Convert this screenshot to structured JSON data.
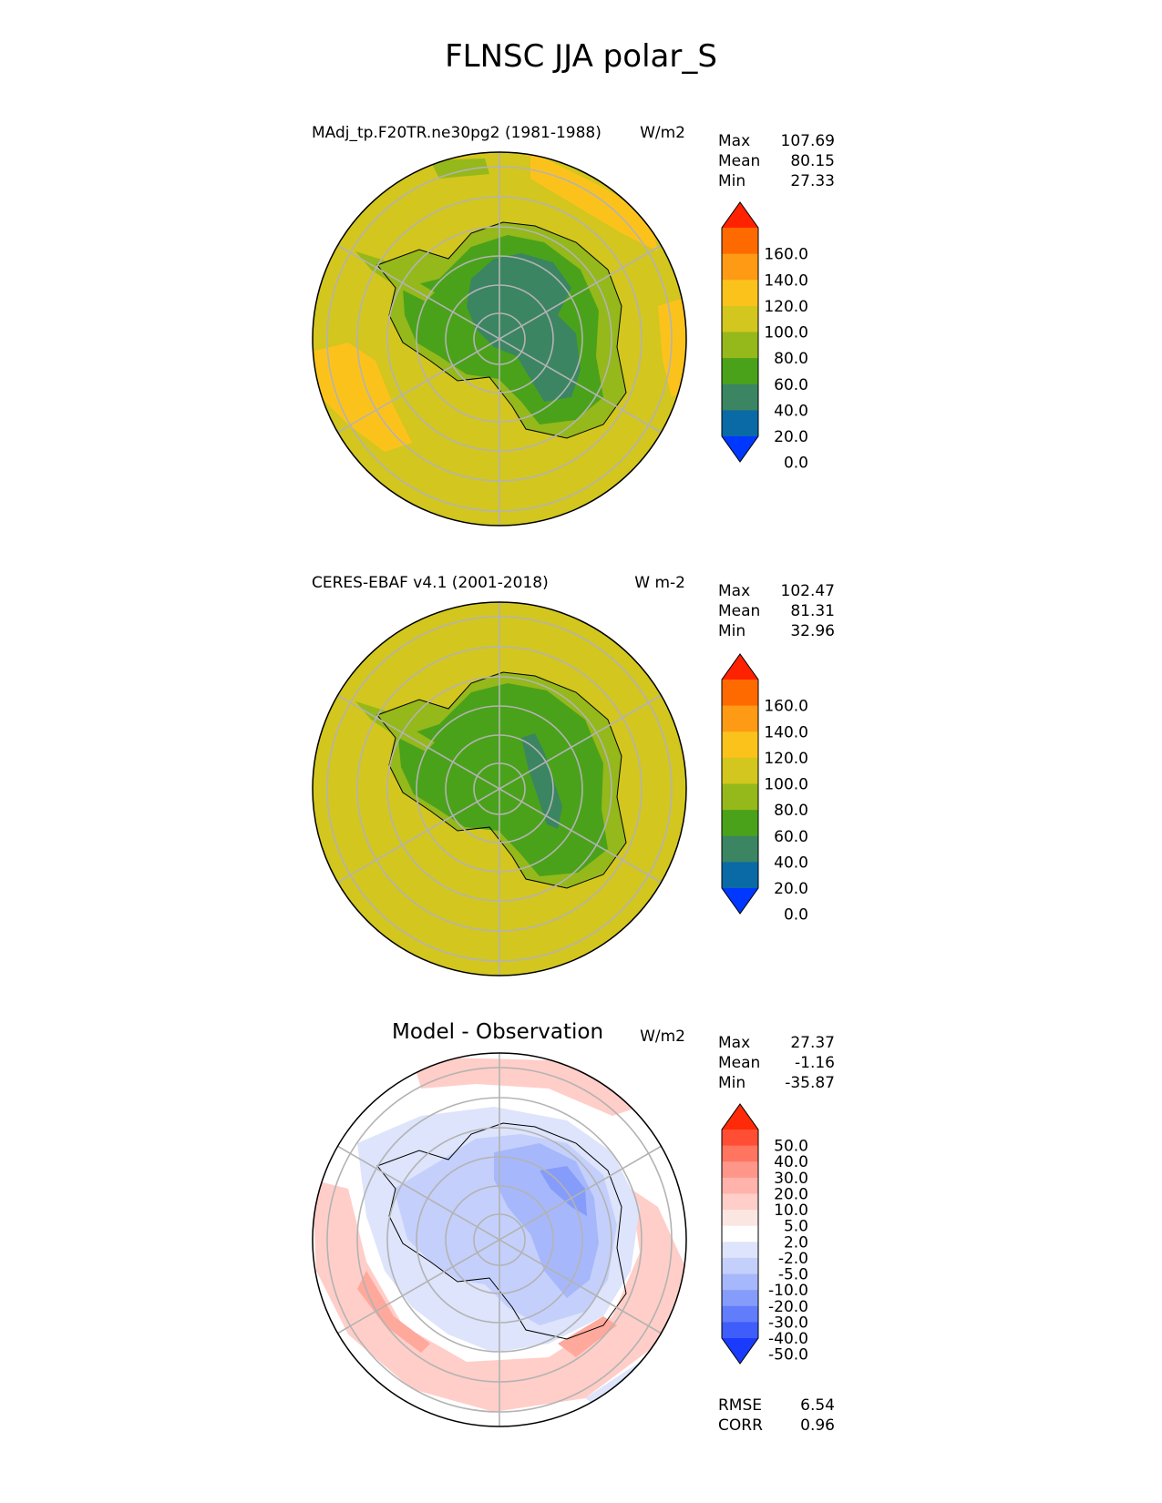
{
  "title": "FLNSC JJA polar_S",
  "panels": [
    {
      "title": "MAdj_tp.F20TR.ne30pg2 (1981-1988)",
      "units": "W/m2",
      "stats": [
        {
          "label": "Max",
          "value": "107.69"
        },
        {
          "label": "Mean",
          "value": "80.15"
        },
        {
          "label": "Min",
          "value": "27.33"
        }
      ]
    },
    {
      "title": "CERES-EBAF v4.1 (2001-2018)",
      "units": "W m-2",
      "stats": [
        {
          "label": "Max",
          "value": "102.47"
        },
        {
          "label": "Mean",
          "value": "81.31"
        },
        {
          "label": "Min",
          "value": "32.96"
        }
      ]
    },
    {
      "title": "Model - Observation",
      "units": "W/m2",
      "stats": [
        {
          "label": "Max",
          "value": "27.37"
        },
        {
          "label": "Mean",
          "value": "-1.16"
        },
        {
          "label": "Min",
          "value": "-35.87"
        }
      ],
      "metrics": [
        {
          "label": "RMSE",
          "value": "6.54"
        },
        {
          "label": "CORR",
          "value": "0.96"
        }
      ]
    }
  ],
  "colorbars": {
    "fields": {
      "ticks": [
        "160.0",
        "140.0",
        "120.0",
        "100.0",
        "80.0",
        "60.0",
        "40.0",
        "20.0",
        "0.0"
      ],
      "colors": [
        "#ff2200",
        "#ff6a00",
        "#ff9a14",
        "#fcc21c",
        "#d3c61e",
        "#95b81b",
        "#4aa21a",
        "#3b8562",
        "#0a6aa6",
        "#0038ff"
      ]
    },
    "diff": {
      "ticks": [
        "50.0",
        "40.0",
        "30.0",
        "20.0",
        "10.0",
        "5.0",
        "2.0",
        "-2.0",
        "-5.0",
        "-10.0",
        "-20.0",
        "-30.0",
        "-40.0",
        "-50.0"
      ],
      "colors": [
        "#ff2a08",
        "#ff4e33",
        "#ff7560",
        "#ff968a",
        "#ffb3aa",
        "#ffcec8",
        "#fbe6e2",
        "#ffffff",
        "#dde4fb",
        "#c4d0fb",
        "#a6b8fb",
        "#859cfb",
        "#627dfb",
        "#3f5dfb",
        "#1a3bfb"
      ]
    }
  },
  "chart_data": [
    {
      "type": "heatmap",
      "title": "MAdj_tp.F20TR.ne30pg2 (1981-1988)",
      "projection": "south polar stereographic",
      "units": "W/m2",
      "levels": [
        0,
        20,
        40,
        60,
        80,
        100,
        120,
        140,
        160
      ],
      "extend": "both",
      "stats": {
        "max": 107.69,
        "mean": 80.15,
        "min": 27.33
      },
      "grid": true
    },
    {
      "type": "heatmap",
      "title": "CERES-EBAF v4.1 (2001-2018)",
      "projection": "south polar stereographic",
      "units": "W m-2",
      "levels": [
        0,
        20,
        40,
        60,
        80,
        100,
        120,
        140,
        160
      ],
      "extend": "both",
      "stats": {
        "max": 102.47,
        "mean": 81.31,
        "min": 32.96
      },
      "grid": true
    },
    {
      "type": "heatmap",
      "title": "Model - Observation",
      "projection": "south polar stereographic",
      "units": "W/m2",
      "levels": [
        -50,
        -40,
        -30,
        -20,
        -10,
        -5,
        -2,
        2,
        5,
        10,
        20,
        30,
        40,
        50
      ],
      "extend": "both",
      "stats": {
        "max": 27.37,
        "mean": -1.16,
        "min": -35.87,
        "rmse": 6.54,
        "corr": 0.96
      },
      "grid": true
    }
  ]
}
